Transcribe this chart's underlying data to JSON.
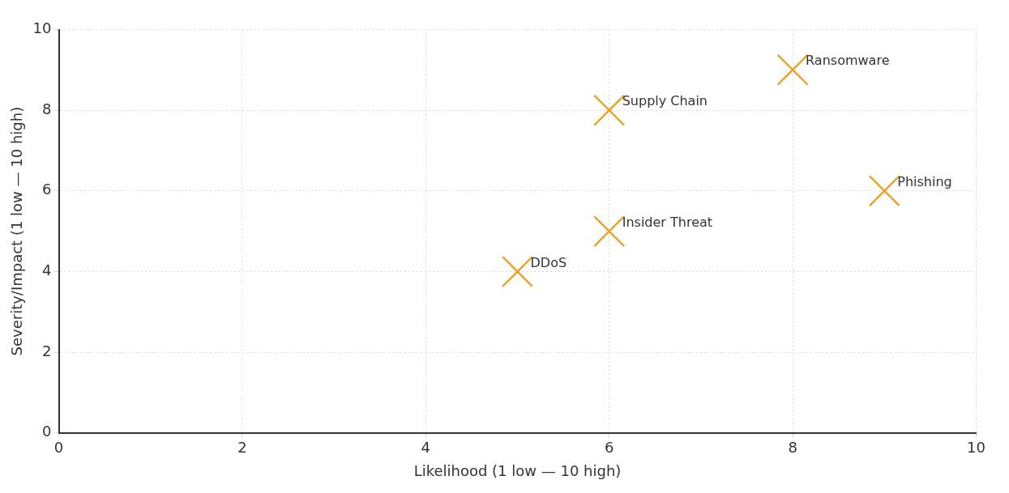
{
  "chart_data": {
    "type": "scatter",
    "xlabel": "Likelihood (1 low — 10 high)",
    "ylabel": "Severity/Impact (1 low — 10 high)",
    "x": [
      8,
      6,
      9,
      6,
      5
    ],
    "values": [
      9,
      8,
      6,
      5,
      4
    ],
    "color": "#e8a52b",
    "marker": "cross",
    "annotations": [
      {
        "text": "Ransomware",
        "x": 8,
        "y": 9
      },
      {
        "text": "Supply Chain",
        "x": 6,
        "y": 8
      },
      {
        "text": "Phishing",
        "x": 9,
        "y": 6
      },
      {
        "text": "Insider Threat",
        "x": 6,
        "y": 5
      },
      {
        "text": "DDoS",
        "x": 5,
        "y": 4
      }
    ],
    "xlim": [
      0,
      10
    ],
    "xticks": [
      0,
      2,
      4,
      6,
      8,
      10
    ],
    "ylim": [
      0,
      10
    ],
    "yticks": [
      0,
      2,
      4,
      6,
      8,
      10
    ],
    "grid": true
  }
}
